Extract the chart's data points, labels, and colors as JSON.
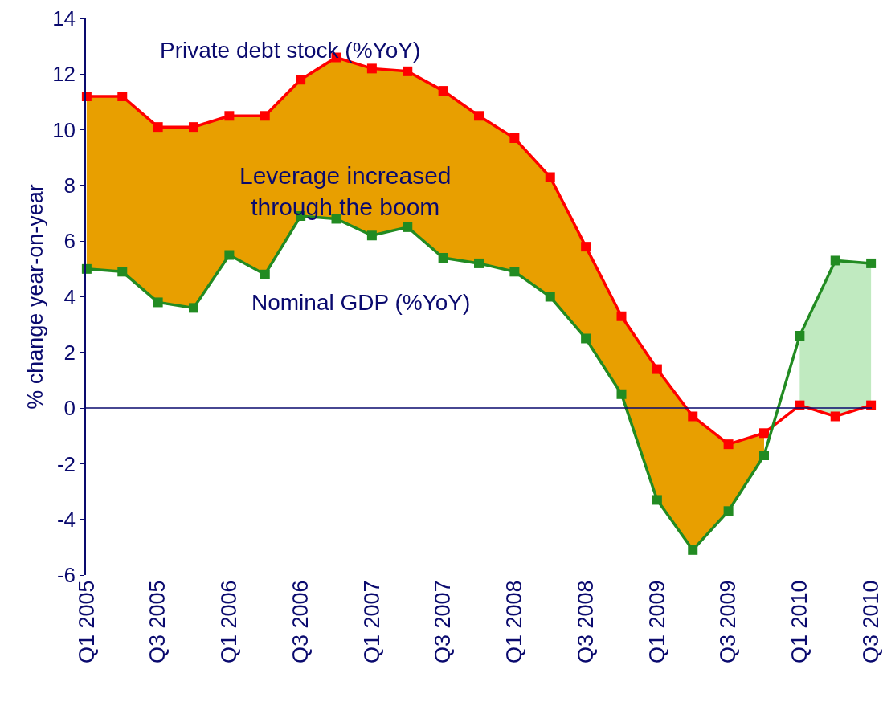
{
  "chart_data": {
    "type": "line",
    "ylabel": "% change year-on-year",
    "categories": [
      "Q1 2005",
      null,
      "Q3 2005",
      null,
      "Q1 2006",
      null,
      "Q3 2006",
      null,
      "Q1 2007",
      null,
      "Q3 2007",
      null,
      "Q1 2008",
      null,
      "Q3 2008",
      null,
      "Q1 2009",
      null,
      "Q3 2009",
      null,
      "Q1 2010",
      null,
      "Q3 2010"
    ],
    "series": [
      {
        "name": "Private debt stock (%YoY)",
        "color": "#ff0000",
        "values": [
          11.2,
          11.2,
          10.1,
          10.1,
          10.5,
          10.5,
          11.8,
          12.6,
          12.2,
          12.1,
          11.4,
          10.5,
          9.7,
          8.3,
          5.8,
          3.3,
          1.4,
          -0.3,
          -1.3,
          -0.9,
          0.1,
          -0.3,
          0.1
        ],
        "upper": [
          11.2,
          11.2,
          10.1,
          10.1,
          10.5,
          10.5,
          11.8,
          12.6,
          12.2,
          12.1,
          11.4,
          10.5,
          9.7,
          8.3,
          5.8,
          3.3,
          1.4,
          -0.3,
          -1.3,
          -0.9,
          null,
          null,
          null
        ],
        "lower": [
          5.0,
          4.9,
          3.8,
          3.6,
          5.5,
          4.8,
          6.9,
          6.8,
          6.2,
          6.5,
          5.4,
          5.2,
          4.9,
          4.0,
          2.5,
          0.5,
          -3.3,
          -5.1,
          -3.7,
          -1.7,
          null,
          null,
          null
        ]
      },
      {
        "name": "Nominal GDP (%YoY)",
        "color": "#228b22",
        "values": [
          5.0,
          4.9,
          3.8,
          3.6,
          5.5,
          4.8,
          6.9,
          6.8,
          6.2,
          6.5,
          5.4,
          5.2,
          4.9,
          4.0,
          2.5,
          0.5,
          -3.3,
          -5.1,
          -3.7,
          -1.7,
          2.6,
          5.3,
          5.2
        ],
        "upper": [
          null,
          null,
          null,
          null,
          null,
          null,
          null,
          null,
          null,
          null,
          null,
          null,
          null,
          null,
          null,
          null,
          null,
          null,
          null,
          null,
          2.6,
          5.3,
          5.2
        ],
        "lower": [
          null,
          null,
          null,
          null,
          null,
          null,
          null,
          null,
          null,
          null,
          null,
          null,
          null,
          null,
          null,
          null,
          null,
          null,
          null,
          null,
          0.1,
          -0.3,
          0.1
        ]
      }
    ],
    "annotations": [
      "Leverage increased through the boom"
    ],
    "ylim": [
      -6,
      14
    ],
    "yticks": [
      -6,
      -4,
      -2,
      0,
      2,
      4,
      6,
      8,
      10,
      12,
      14
    ],
    "ref_lines": [
      {
        "axis": "y",
        "value": 0,
        "color": "#0a0a6e"
      }
    ],
    "grid": false,
    "legend": false,
    "marker": "square",
    "line_style": "solid"
  }
}
